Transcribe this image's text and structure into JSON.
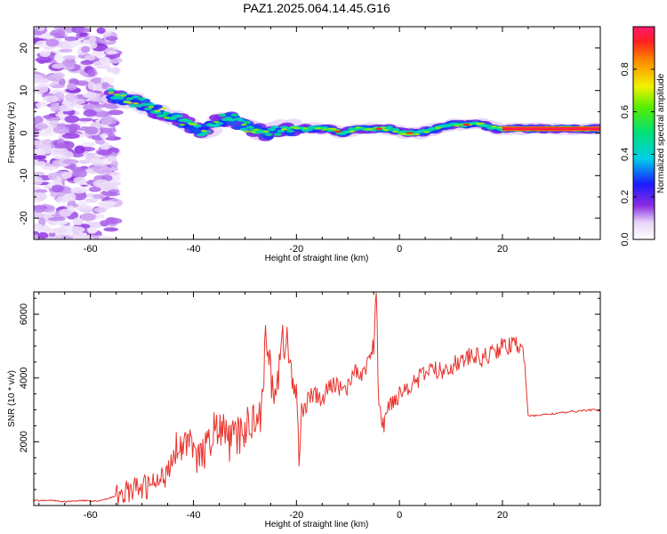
{
  "figure": {
    "title": "PAZ1.2025.064.14.45.G16"
  },
  "chart_data": [
    {
      "type": "heatmap",
      "title": "PAZ1.2025.064.14.45.G16",
      "xlabel": "Height of straight line (km)",
      "ylabel": "Frequency (Hz)",
      "xlim": [
        -71,
        39
      ],
      "ylim": [
        -25,
        25
      ],
      "xticks": [
        -60,
        -40,
        -20,
        0,
        20
      ],
      "yticks": [
        -20,
        -10,
        0,
        10,
        20
      ],
      "grid": false,
      "colorbar": {
        "label": "Normalized spectral amplitude",
        "range": [
          0,
          1
        ],
        "ticks": [
          0.0,
          0.2,
          0.4,
          0.6,
          0.8
        ]
      },
      "ridge": {
        "description_points_x": [
          -56,
          -53,
          -50,
          -47,
          -44,
          -41,
          -38,
          -35,
          -32,
          -29,
          -26,
          -23,
          -20,
          -17,
          -14,
          -11,
          -8,
          -5,
          -2,
          1,
          4,
          7,
          10,
          13,
          16,
          19,
          22,
          25,
          28,
          31,
          34,
          37,
          39
        ],
        "description_points_freq": [
          9,
          8,
          7,
          5,
          4,
          2,
          0,
          3,
          3,
          1,
          0,
          1,
          1,
          1,
          1,
          0,
          1,
          1,
          1,
          0,
          0,
          1,
          2,
          2,
          2,
          1,
          1,
          1,
          1,
          1,
          1,
          1,
          1
        ]
      }
    },
    {
      "type": "line",
      "xlabel": "Height of straight line (km)",
      "ylabel": "SNR (10 * v/v)",
      "xlim": [
        -71,
        39
      ],
      "ylim": [
        0,
        6700
      ],
      "xticks": [
        -60,
        -40,
        -20,
        0,
        20
      ],
      "yticks": [
        2000,
        4000,
        6000
      ],
      "grid": false,
      "color": "#e8332d",
      "series": [
        {
          "x": [
            -71,
            -68,
            -65,
            -62,
            -59,
            -57,
            -55,
            -53,
            -50,
            -48,
            -46,
            -45,
            -44,
            -43,
            -42,
            -41,
            -40,
            -38,
            -36,
            -34,
            -33,
            -31,
            -29,
            -27,
            -26,
            -25,
            -24,
            -23,
            -22,
            -21,
            -20,
            -19.5,
            -19,
            -18,
            -17,
            -15,
            -14,
            -13,
            -11,
            -10,
            -9,
            -8,
            -6,
            -5,
            -4.5,
            -4,
            -3,
            -2,
            0,
            2,
            4,
            6,
            8,
            10,
            12,
            14,
            16,
            18,
            20,
            22,
            24,
            24.5,
            25,
            28,
            31,
            34,
            37,
            39
          ],
          "y": [
            150,
            170,
            120,
            160,
            140,
            200,
            300,
            450,
            550,
            650,
            800,
            1200,
            1600,
            2000,
            1800,
            2200,
            1500,
            1600,
            2400,
            2300,
            2000,
            2200,
            2600,
            3000,
            5000,
            4200,
            3500,
            4800,
            5450,
            3900,
            3600,
            1500,
            3000,
            3200,
            3500,
            3300,
            3600,
            3800,
            3700,
            3700,
            4300,
            4000,
            4500,
            5000,
            6700,
            3000,
            2500,
            3200,
            3500,
            3800,
            4000,
            4300,
            4200,
            4400,
            4500,
            4700,
            4600,
            4800,
            5000,
            5000,
            5100,
            4000,
            2800,
            2850,
            2900,
            2950,
            3000,
            2980
          ]
        }
      ]
    }
  ]
}
